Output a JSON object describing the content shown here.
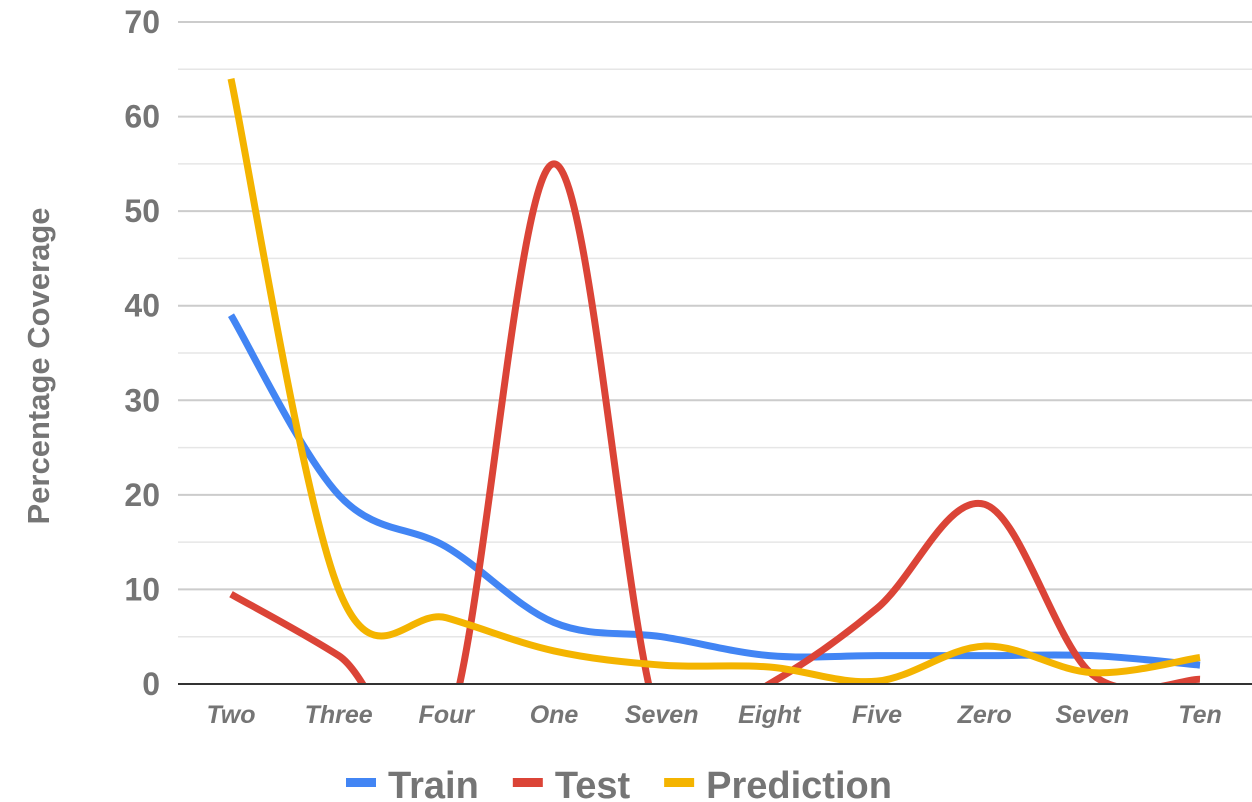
{
  "chart_data": {
    "type": "line",
    "title": "",
    "xlabel": "",
    "ylabel": "Percentage Coverage",
    "ylim": [
      0,
      70
    ],
    "yticks": [
      "0",
      "10",
      "20",
      "30",
      "40",
      "50",
      "60",
      "70"
    ],
    "categories": [
      "Two",
      "Three",
      "Four",
      "One",
      "Seven",
      "Eight",
      "Five",
      "Zero",
      "Seven",
      "Ten"
    ],
    "grid": true,
    "legend_position": "bottom",
    "smooth": true,
    "series": [
      {
        "name": "Train",
        "color": "#4285F4",
        "values": [
          39,
          20,
          14.5,
          6.5,
          5,
          3,
          3,
          3,
          3,
          2
        ]
      },
      {
        "name": "Test",
        "color": "#DB4437",
        "values": [
          9.5,
          3,
          -5,
          55,
          -5,
          0,
          8,
          19,
          1,
          0.5
        ]
      },
      {
        "name": "Prediction",
        "color": "#F4B400",
        "values": [
          64,
          10,
          7,
          3.5,
          2,
          1.8,
          0.3,
          4,
          1.2,
          2.8
        ]
      }
    ]
  }
}
